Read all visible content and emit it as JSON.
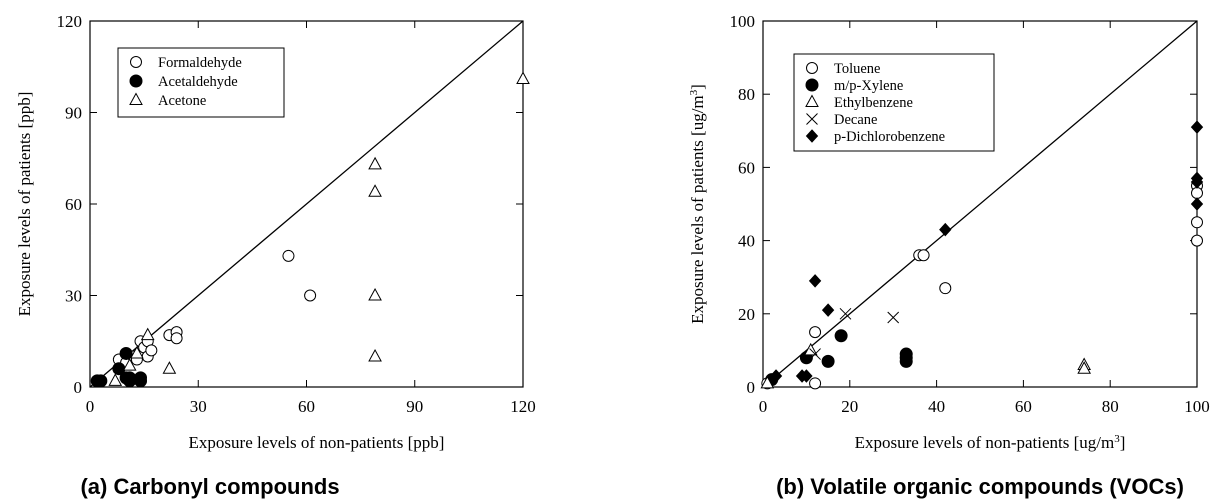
{
  "chart_data": [
    {
      "type": "scatter",
      "caption": "(a) Carbonyl compounds",
      "xlabel": "Exposure levels of non-patients [ppb]",
      "ylabel": "Exposure levels of patients [ppb]",
      "xlim": [
        0,
        120
      ],
      "ylim": [
        0,
        120
      ],
      "xticks": [
        "0",
        "30",
        "60",
        "90",
        "120"
      ],
      "yticks": [
        "0",
        "30",
        "60",
        "90",
        "120"
      ],
      "reference_line": "y = x",
      "legend_position": "top-left",
      "series": [
        {
          "name": "Formaldehyde",
          "marker": "open-circle",
          "points": [
            [
              8,
              9
            ],
            [
              10,
              8
            ],
            [
              12,
              10
            ],
            [
              13,
              9
            ],
            [
              14,
              15
            ],
            [
              15,
              13
            ],
            [
              16,
              10
            ],
            [
              16,
              15
            ],
            [
              17,
              12
            ],
            [
              22,
              17
            ],
            [
              24,
              18
            ],
            [
              24,
              16
            ],
            [
              55,
              43
            ],
            [
              61,
              30
            ]
          ]
        },
        {
          "name": "Acetaldehyde",
          "marker": "filled-circle",
          "points": [
            [
              2,
              2
            ],
            [
              3,
              2
            ],
            [
              8,
              6
            ],
            [
              10,
              11
            ],
            [
              10,
              3
            ],
            [
              11,
              2
            ],
            [
              11,
              3
            ],
            [
              14,
              2
            ],
            [
              14,
              3
            ]
          ]
        },
        {
          "name": "Acetone",
          "marker": "open-triangle",
          "points": [
            [
              7,
              2
            ],
            [
              11,
              7
            ],
            [
              13,
              11
            ],
            [
              16,
              17
            ],
            [
              22,
              6
            ],
            [
              79,
              73
            ],
            [
              79,
              64
            ],
            [
              79,
              30
            ],
            [
              79,
              10
            ],
            [
              120,
              101
            ]
          ]
        }
      ]
    },
    {
      "type": "scatter",
      "caption": "(b) Volatile organic compounds (VOCs)",
      "xlabel": "Exposure levels of non-patients [ug/m3]",
      "ylabel": "Exposure levels of patients [ug/m3]",
      "xlim": [
        0,
        100
      ],
      "ylim": [
        0,
        100
      ],
      "xticks": [
        "0",
        "20",
        "40",
        "60",
        "80",
        "100"
      ],
      "yticks": [
        "0",
        "20",
        "40",
        "60",
        "80",
        "100"
      ],
      "reference_line": "y = x",
      "legend_position": "top-left",
      "series": [
        {
          "name": "Toluene",
          "marker": "open-circle",
          "points": [
            [
              1,
              1
            ],
            [
              10,
              8
            ],
            [
              12,
              15
            ],
            [
              12,
              1
            ],
            [
              15,
              7
            ],
            [
              36,
              36
            ],
            [
              37,
              36
            ],
            [
              42,
              27
            ],
            [
              100,
              55
            ],
            [
              100,
              53
            ],
            [
              100,
              45
            ],
            [
              100,
              40
            ]
          ]
        },
        {
          "name": "m/p-Xylene",
          "marker": "filled-circle",
          "points": [
            [
              2,
              2
            ],
            [
              10,
              8
            ],
            [
              15,
              7
            ],
            [
              18,
              14
            ],
            [
              33,
              9
            ],
            [
              33,
              8
            ],
            [
              33,
              7
            ]
          ]
        },
        {
          "name": "Ethylbenzene",
          "marker": "open-triangle",
          "points": [
            [
              1,
              1
            ],
            [
              11,
              10
            ],
            [
              74,
              6
            ],
            [
              74,
              5
            ]
          ]
        },
        {
          "name": "Decane",
          "marker": "cross",
          "points": [
            [
              12,
              9
            ],
            [
              19,
              20
            ],
            [
              30,
              19
            ]
          ]
        },
        {
          "name": "p-Dichlorobenzene",
          "marker": "filled-diamond",
          "points": [
            [
              3,
              3
            ],
            [
              9,
              3
            ],
            [
              10,
              3
            ],
            [
              12,
              29
            ],
            [
              15,
              21
            ],
            [
              42,
              43
            ],
            [
              100,
              71
            ],
            [
              100,
              57
            ],
            [
              100,
              56
            ],
            [
              100,
              50
            ]
          ]
        }
      ]
    }
  ]
}
